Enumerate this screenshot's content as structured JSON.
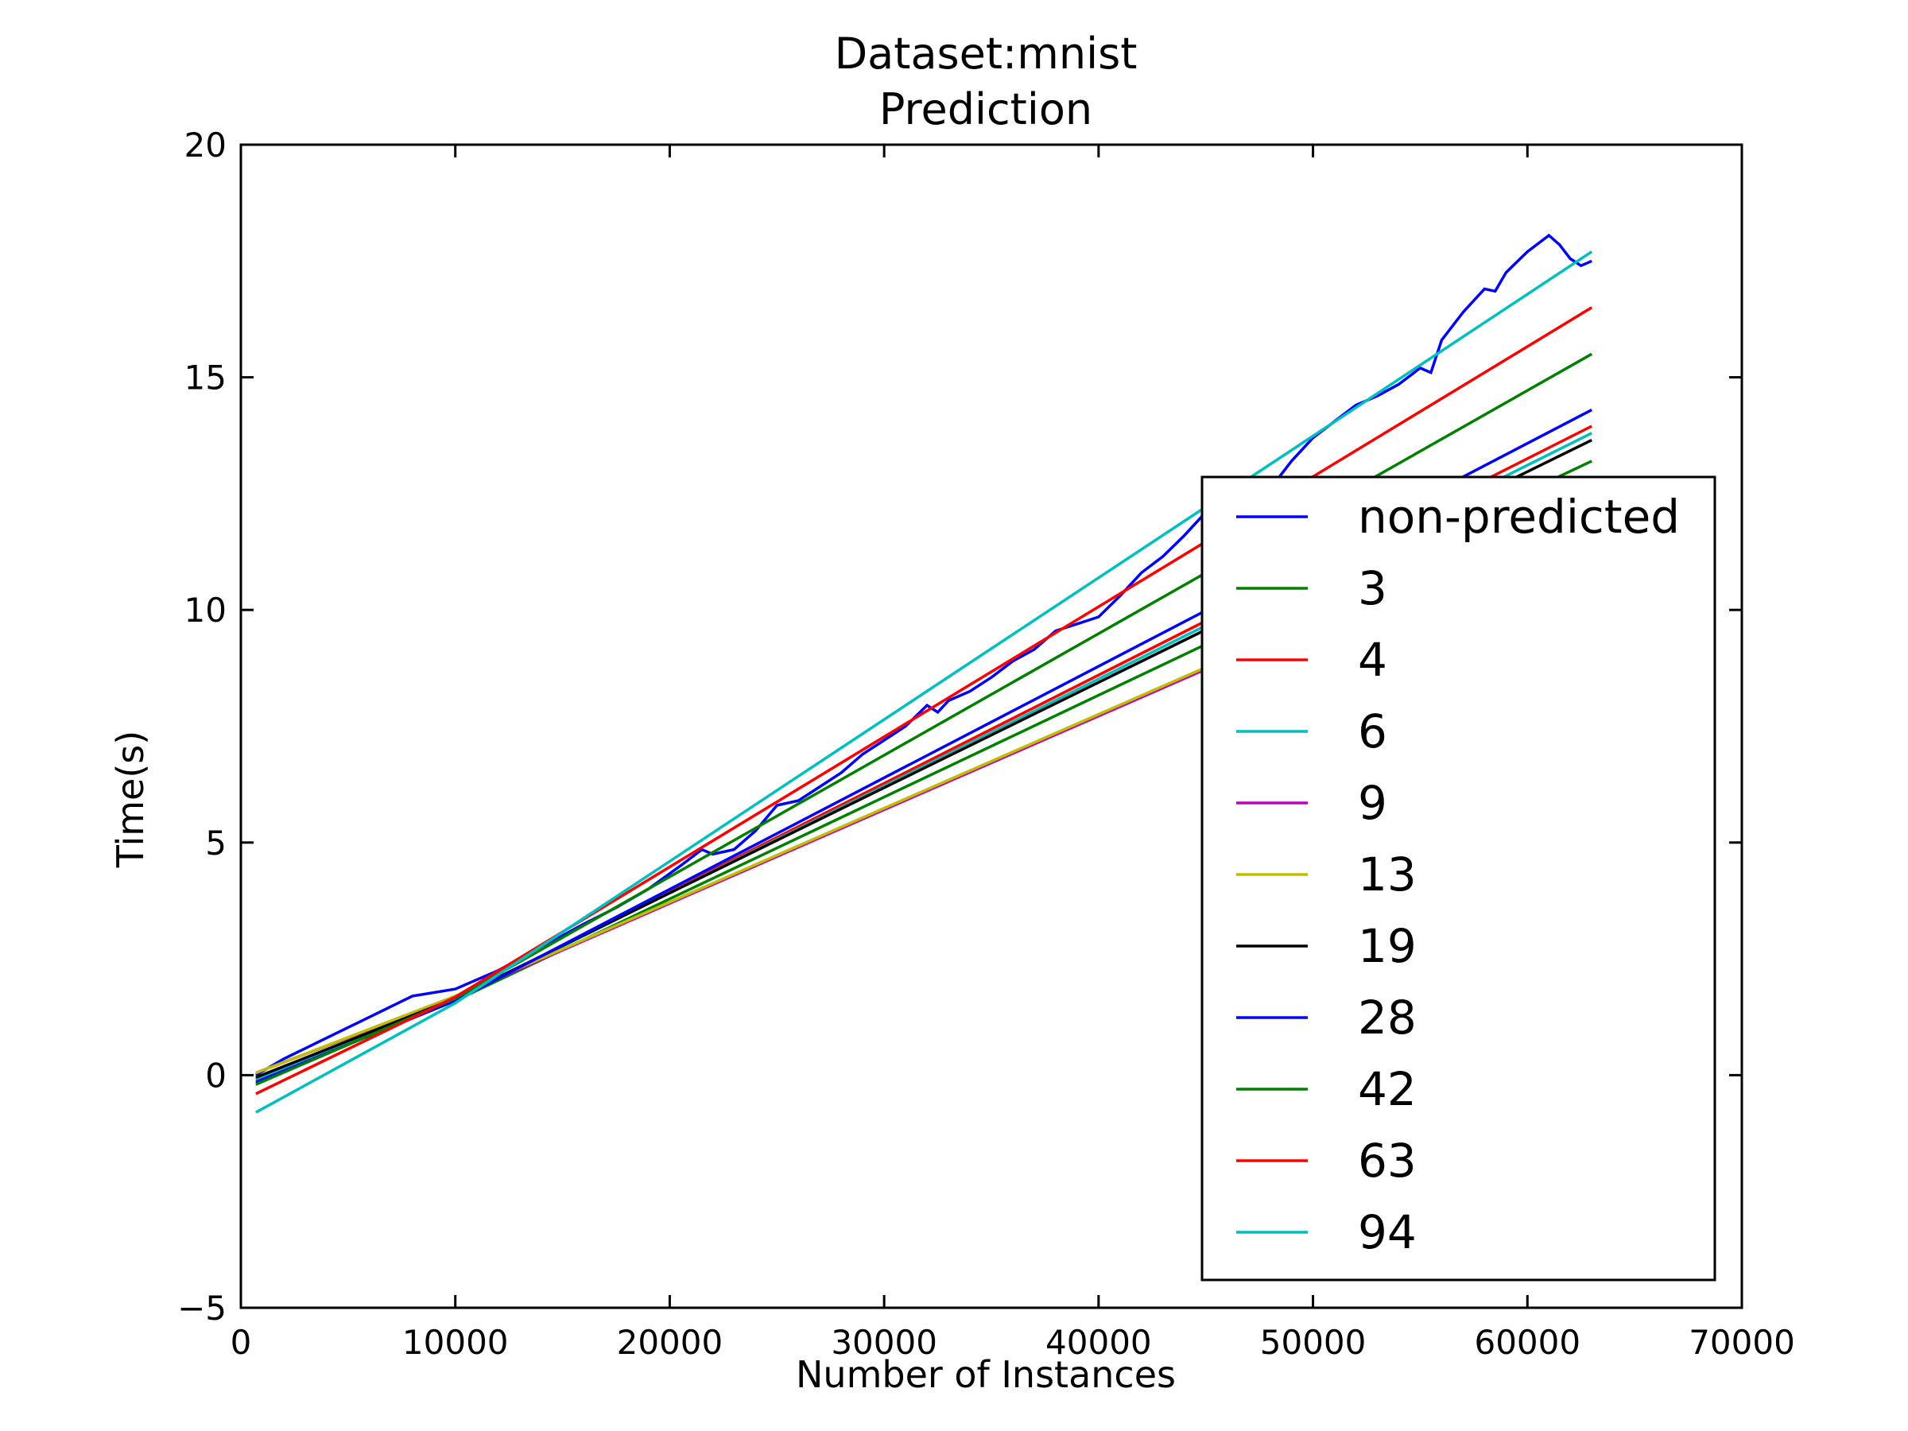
{
  "chart_data": {
    "type": "line",
    "title": "Dataset:mnist",
    "subtitle": "Prediction",
    "xlabel": "Number of Instances",
    "ylabel": "Time(s)",
    "xlim": [
      0,
      70000
    ],
    "ylim": [
      -5,
      20
    ],
    "xticks": [
      0,
      10000,
      20000,
      30000,
      40000,
      50000,
      60000,
      70000
    ],
    "xtick_labels": [
      "0",
      "10000",
      "20000",
      "30000",
      "40000",
      "50000",
      "60000",
      "70000"
    ],
    "yticks": [
      -5,
      0,
      5,
      10,
      15,
      20
    ],
    "ytick_labels": [
      "−5",
      "0",
      "5",
      "10",
      "15",
      "20"
    ],
    "grid": false,
    "legend_position": "lower-right",
    "series": [
      {
        "name": "non-predicted",
        "color": "#0000ff",
        "x": [
          700,
          2000,
          4000,
          6000,
          8000,
          10000,
          12000,
          14000,
          16000,
          17500,
          19000,
          20500,
          21500,
          22000,
          23000,
          24000,
          25000,
          26000,
          27000,
          28000,
          29000,
          30000,
          31000,
          32000,
          32500,
          33000,
          34000,
          35000,
          36000,
          37000,
          38000,
          39000,
          40000,
          41000,
          42000,
          43000,
          44000,
          45000,
          46000,
          47000,
          48000,
          49000,
          50000,
          51000,
          52000,
          53000,
          54000,
          55000,
          55500,
          56000,
          57000,
          58000,
          58500,
          59000,
          60000,
          61000,
          61500,
          62000,
          62500,
          63000
        ],
        "y": [
          0.0,
          0.35,
          0.8,
          1.25,
          1.7,
          1.85,
          2.25,
          2.75,
          3.25,
          3.6,
          4.0,
          4.5,
          4.85,
          4.75,
          4.85,
          5.25,
          5.8,
          5.9,
          6.2,
          6.5,
          6.9,
          7.2,
          7.5,
          7.95,
          7.8,
          8.05,
          8.25,
          8.55,
          8.9,
          9.15,
          9.55,
          9.7,
          9.85,
          10.3,
          10.8,
          11.15,
          11.6,
          12.1,
          12.35,
          12.4,
          12.6,
          13.2,
          13.7,
          14.05,
          14.4,
          14.6,
          14.85,
          15.2,
          15.1,
          15.8,
          16.4,
          16.9,
          16.85,
          17.25,
          17.7,
          18.05,
          17.85,
          17.55,
          17.4,
          17.5
        ]
      },
      {
        "name": "3",
        "color": "#008000",
        "x": [
          700,
          10000,
          63000
        ],
        "y": [
          -0.1,
          1.6,
          13.2
        ]
      },
      {
        "name": "4",
        "color": "#ff0000",
        "x": [
          700,
          10000,
          63000
        ],
        "y": [
          -0.05,
          1.62,
          13.95
        ]
      },
      {
        "name": "6",
        "color": "#00bfbf",
        "x": [
          700,
          10000,
          63000
        ],
        "y": [
          -0.08,
          1.62,
          13.8
        ]
      },
      {
        "name": "9",
        "color": "#bf00bf",
        "x": [
          700,
          10000,
          63000
        ],
        "y": [
          0.05,
          1.68,
          12.35
        ]
      },
      {
        "name": "13",
        "color": "#bfbf00",
        "x": [
          700,
          10000,
          63000
        ],
        "y": [
          0.05,
          1.7,
          12.4
        ]
      },
      {
        "name": "19",
        "color": "#000000",
        "x": [
          700,
          10000,
          63000
        ],
        "y": [
          -0.05,
          1.65,
          13.65
        ]
      },
      {
        "name": "28",
        "color": "#0000ff",
        "x": [
          700,
          10000,
          63000
        ],
        "y": [
          -0.15,
          1.6,
          14.3
        ]
      },
      {
        "name": "42",
        "color": "#008000",
        "x": [
          700,
          10000,
          63000
        ],
        "y": [
          -0.2,
          1.65,
          15.5
        ]
      },
      {
        "name": "63",
        "color": "#ff0000",
        "x": [
          700,
          10000,
          63000
        ],
        "y": [
          -0.4,
          1.68,
          16.5
        ]
      },
      {
        "name": "94",
        "color": "#00bfbf",
        "x": [
          700,
          10000,
          63000
        ],
        "y": [
          -0.8,
          1.55,
          17.7
        ]
      }
    ]
  }
}
